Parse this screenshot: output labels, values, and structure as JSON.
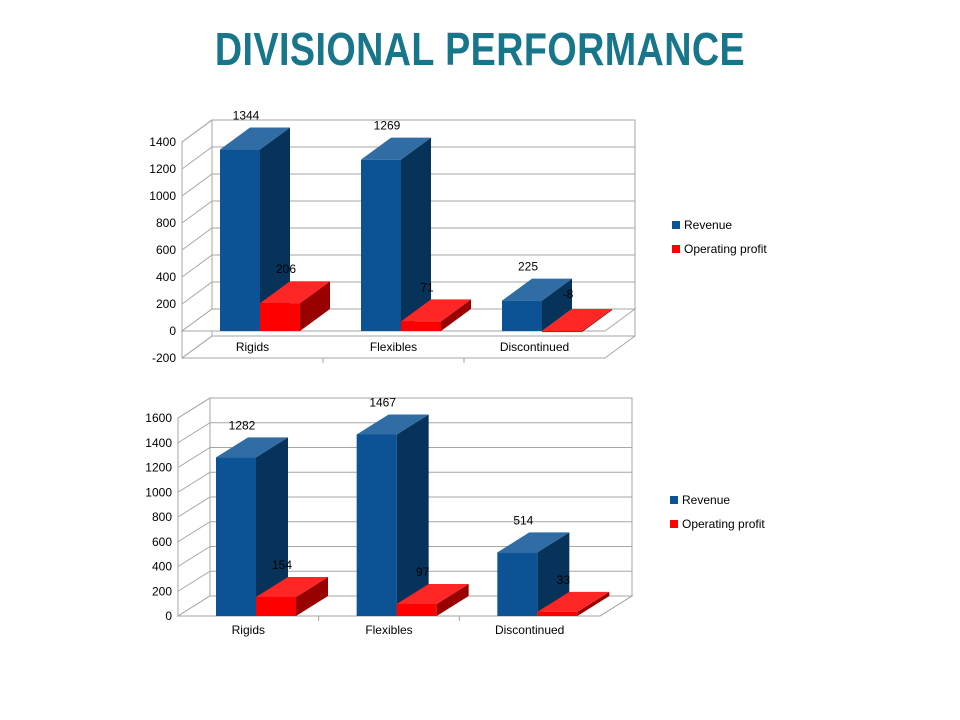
{
  "slide": {
    "title": "DIVISIONAL PERFORMANCE"
  },
  "colors": {
    "title": "#17768a",
    "revenue": "#0b5394",
    "operating_profit": "#ff0000"
  },
  "chart_data": [
    {
      "type": "bar",
      "categories": [
        "Rigids",
        "Flexibles",
        "Discontinued"
      ],
      "series": [
        {
          "name": "Revenue",
          "values": [
            1344,
            1269,
            225
          ]
        },
        {
          "name": "Operating profit",
          "values": [
            206,
            71,
            -8
          ]
        }
      ],
      "ylim": [
        -200,
        1400
      ],
      "yticks": [
        -200,
        0,
        200,
        400,
        600,
        800,
        1000,
        1200,
        1400
      ],
      "grid": true,
      "legend": "right",
      "style": "3d-clustered-column"
    },
    {
      "type": "bar",
      "categories": [
        "Rigids",
        "Flexibles",
        "Discontinued"
      ],
      "series": [
        {
          "name": "Revenue",
          "values": [
            1282,
            1467,
            514
          ]
        },
        {
          "name": "Operating profit",
          "values": [
            154,
            97,
            33
          ]
        }
      ],
      "ylim": [
        0,
        1600
      ],
      "yticks": [
        0,
        200,
        400,
        600,
        800,
        1000,
        1200,
        1400,
        1600
      ],
      "grid": true,
      "legend": "right",
      "style": "3d-clustered-column"
    }
  ]
}
